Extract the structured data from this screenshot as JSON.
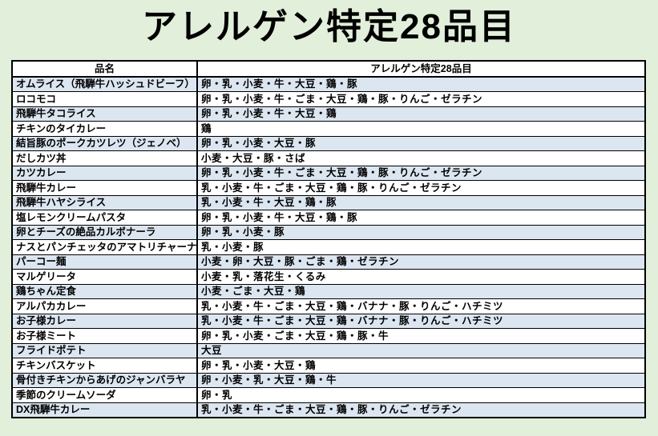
{
  "title": "アレルゲン特定28品目",
  "colors": {
    "page_background": "#e2efda",
    "row_stripe_blue": "#dce6f1",
    "row_white": "#ffffff",
    "border": "#000000",
    "text": "#000000"
  },
  "table": {
    "headers": [
      "品名",
      "アレルゲン特定28品目"
    ],
    "rows": [
      {
        "name": "オムライス（飛騨牛ハッシュドビーフ）",
        "allergens": "卵・乳・小麦・牛・大豆・鶏・豚"
      },
      {
        "name": "ロコモコ",
        "allergens": "卵・乳・小麦・牛・ごま・大豆・鶏・豚・りんご・ゼラチン"
      },
      {
        "name": "飛騨牛タコライス",
        "allergens": "卵・乳・小麦・牛・大豆・鶏"
      },
      {
        "name": "チキンのタイカレー",
        "allergens": "鶏"
      },
      {
        "name": "結旨豚のポークカツレツ（ジェノベ）",
        "allergens": "卵・乳・小麦・大豆・豚"
      },
      {
        "name": "だしカツ丼",
        "allergens": "小麦・大豆・豚・さば"
      },
      {
        "name": "カツカレー",
        "allergens": "卵・乳・小麦・牛・ごま・大豆・鶏・豚・りんご・ゼラチン"
      },
      {
        "name": "飛騨牛カレー",
        "allergens": "乳・小麦・牛・ごま・大豆・鶏・豚・りんご・ゼラチン"
      },
      {
        "name": "飛騨牛ハヤシライス",
        "allergens": "乳・小麦・牛・大豆・鶏・豚"
      },
      {
        "name": "塩レモンクリームパスタ",
        "allergens": "卵・乳・小麦・牛・大豆・鶏・豚"
      },
      {
        "name": "卵とチーズの絶品カルボナーラ",
        "allergens": "卵・乳・小麦・豚"
      },
      {
        "name": "ナスとパンチェッタのアマトリチャーナ",
        "allergens": "乳・小麦・豚"
      },
      {
        "name": "パーコー麺",
        "allergens": "小麦・卵・大豆・豚・ごま・鶏・ゼラチン"
      },
      {
        "name": "マルゲリータ",
        "allergens": "小麦・乳・落花生・くるみ"
      },
      {
        "name": "鶏ちゃん定食",
        "allergens": "小麦・ごま・大豆・鶏"
      },
      {
        "name": "アルパカカレー",
        "allergens": "乳・小麦・牛・ごま・大豆・鶏・バナナ・豚・りんご・ハチミツ"
      },
      {
        "name": "お子様カレー",
        "allergens": "乳・小麦・牛・ごま・大豆・鶏・バナナ・豚・りんご・ハチミツ"
      },
      {
        "name": "お子様ミート",
        "allergens": "卵・乳・小麦・ごま・大豆・鶏・豚・牛"
      },
      {
        "name": "フライドポテト",
        "allergens": "大豆"
      },
      {
        "name": "チキンバスケット",
        "allergens": "卵・乳・小麦・大豆・鶏"
      },
      {
        "name": "骨付きチキンからあげのジャンバラヤ",
        "allergens": "卵・小麦・乳・大豆・鶏・牛"
      },
      {
        "name": "季節のクリームソーダ",
        "allergens": "卵・乳"
      },
      {
        "name": "DX飛騨牛カレー",
        "allergens": "乳・小麦・牛・ごま・大豆・鶏・豚・りんご・ゼラチン"
      }
    ]
  }
}
